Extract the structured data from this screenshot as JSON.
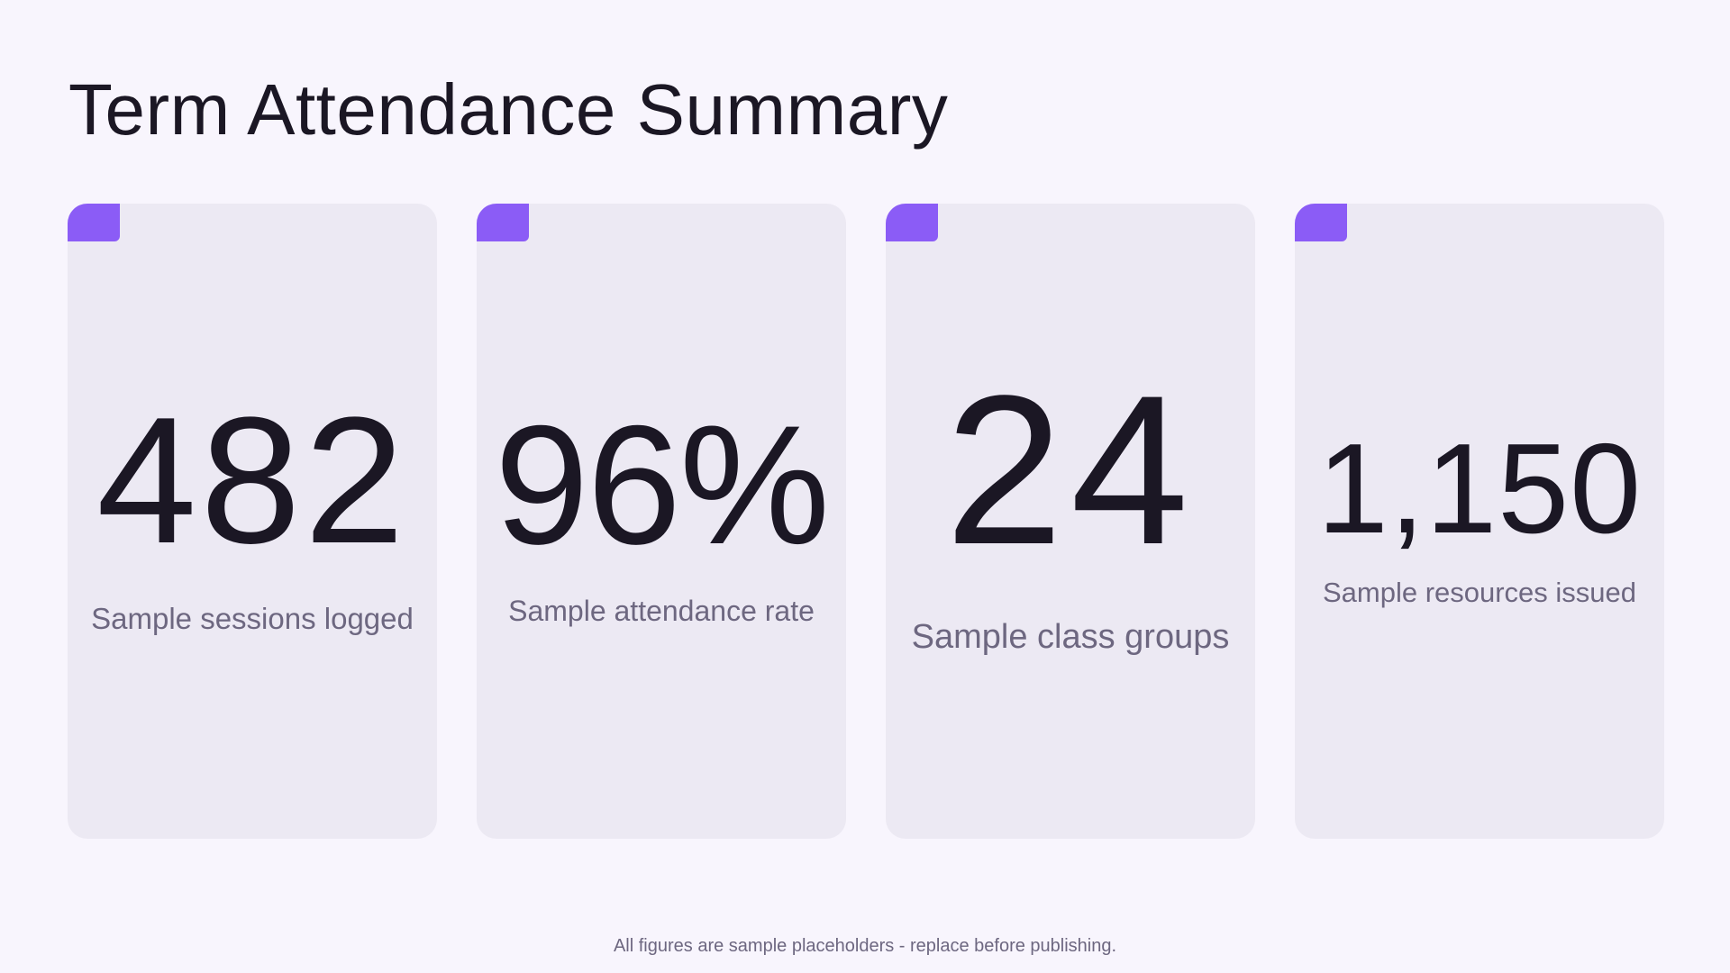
{
  "title": "Term Attendance Summary",
  "colors": {
    "background": "#f8f5fd",
    "card": "#ece9f3",
    "accent": "#8b5cf6",
    "value_text": "#1b1724",
    "label_text": "#6d6780"
  },
  "cards": [
    {
      "value": "482",
      "label": "Sample sessions logged"
    },
    {
      "value": "96%",
      "label": "Sample attendance rate"
    },
    {
      "value": "24",
      "label": "Sample class groups"
    },
    {
      "value": "1,150",
      "label": "Sample resources issued"
    }
  ],
  "footnote": "All figures are sample placeholders - replace before publishing."
}
